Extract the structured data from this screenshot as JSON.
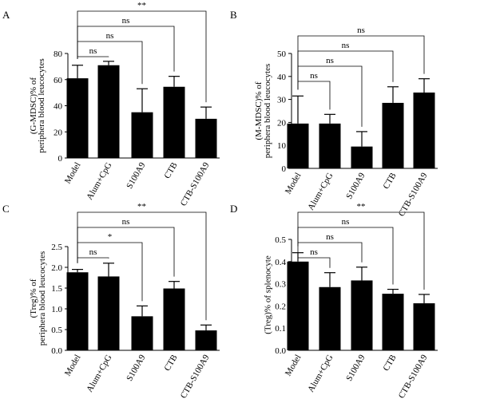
{
  "chart_data": [
    {
      "panel": "A",
      "type": "bar",
      "ylabel": [
        "(G-MDSC)% of",
        "periphera blood leucocytes"
      ],
      "categories": [
        "Model",
        "Alum+CpG",
        "S100A9",
        "CTB",
        "CTB-S100A9"
      ],
      "values": [
        61,
        71,
        35,
        54.5,
        30
      ],
      "errors": [
        10,
        3,
        18,
        8,
        9
      ],
      "ylim": [
        0,
        80
      ],
      "yticks": [
        "0",
        "20",
        "40",
        "60",
        "80"
      ],
      "comparisons": [
        {
          "to": 1,
          "label": "ns"
        },
        {
          "to": 2,
          "label": "ns"
        },
        {
          "to": 3,
          "label": "ns"
        },
        {
          "to": 4,
          "label": "**"
        }
      ]
    },
    {
      "panel": "B",
      "type": "bar",
      "ylabel": [
        "(M-MDSC)% of",
        "periphera blood leucocytes"
      ],
      "categories": [
        "Model",
        "Alum+CpG",
        "S100A9",
        "CTB",
        "CTB-S100A9"
      ],
      "values": [
        19.5,
        19.5,
        9.5,
        28.5,
        33
      ],
      "errors": [
        12,
        4,
        6.5,
        7,
        6
      ],
      "ylim": [
        0,
        50
      ],
      "yticks": [
        "0",
        "10",
        "20",
        "30",
        "40",
        "50"
      ],
      "comparisons": [
        {
          "to": 1,
          "label": "ns"
        },
        {
          "to": 2,
          "label": "ns"
        },
        {
          "to": 3,
          "label": "ns"
        },
        {
          "to": 4,
          "label": "ns"
        }
      ]
    },
    {
      "panel": "C",
      "type": "bar",
      "ylabel": [
        "(Treg)% of",
        "periphera blood leucocytes"
      ],
      "categories": [
        "Model",
        "Alum+CpG",
        "S100A9",
        "CTB",
        "CTB-S100A9"
      ],
      "values": [
        1.88,
        1.78,
        0.82,
        1.49,
        0.48
      ],
      "errors": [
        0.07,
        0.32,
        0.25,
        0.17,
        0.13
      ],
      "ylim": [
        0,
        2.5
      ],
      "yticks": [
        "0.0",
        "0.5",
        "1.0",
        "1.5",
        "2.0",
        "2.5"
      ],
      "comparisons": [
        {
          "to": 1,
          "label": "ns"
        },
        {
          "to": 2,
          "label": "*"
        },
        {
          "to": 3,
          "label": "ns"
        },
        {
          "to": 4,
          "label": "**"
        }
      ]
    },
    {
      "panel": "D",
      "type": "bar",
      "ylabel": [
        "(Treg)% of splenocyte"
      ],
      "categories": [
        "Model",
        "Alum+CpG",
        "S100A9",
        "CTB",
        "CTB-S100A9"
      ],
      "values": [
        0.4,
        0.285,
        0.315,
        0.255,
        0.212
      ],
      "errors": [
        0.04,
        0.065,
        0.06,
        0.02,
        0.04
      ],
      "ylim": [
        0,
        0.5
      ],
      "yticks": [
        "0.0",
        "0.1",
        "0.2",
        "0.3",
        "0.4",
        "0.5"
      ],
      "comparisons": [
        {
          "to": 1,
          "label": "ns"
        },
        {
          "to": 2,
          "label": "ns"
        },
        {
          "to": 3,
          "label": "ns"
        },
        {
          "to": 4,
          "label": "**"
        }
      ]
    }
  ]
}
